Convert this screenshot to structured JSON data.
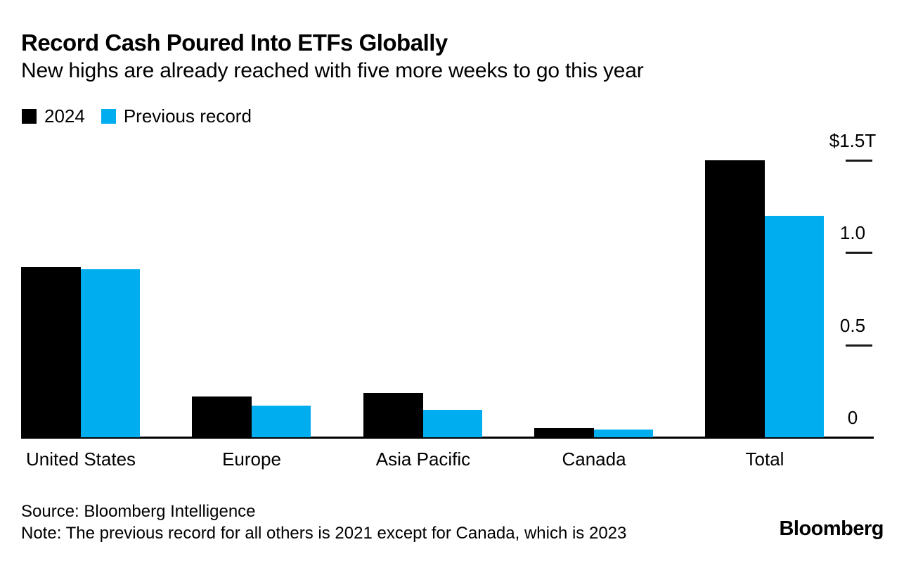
{
  "header": {
    "title": "Record Cash Poured Into ETFs Globally",
    "subtitle": "New highs are already reached with five more weeks to go this year"
  },
  "legend": {
    "items": [
      {
        "label": "2024",
        "color": "#000000"
      },
      {
        "label": "Previous record",
        "color": "#00aeef"
      }
    ]
  },
  "chart_data": {
    "type": "bar",
    "title": "Record Cash Poured Into ETFs Globally",
    "subtitle": "New highs are already reached with five more weeks to go this year",
    "unit": "trillions of US dollars",
    "categories": [
      "United States",
      "Europe",
      "Asia Pacific",
      "Canada",
      "Total"
    ],
    "series": [
      {
        "name": "2024",
        "color": "#000000",
        "values": [
          0.92,
          0.22,
          0.24,
          0.05,
          1.5
        ]
      },
      {
        "name": "Previous record",
        "color": "#00aeef",
        "values": [
          0.91,
          0.17,
          0.15,
          0.04,
          1.2
        ]
      }
    ],
    "y_axis": {
      "side": "right",
      "range": [
        0,
        1.5
      ],
      "ticks": [
        {
          "label": "$1.5T",
          "value": 1.5,
          "dash": true
        },
        {
          "label": "1.0",
          "value": 1.0,
          "dash": true
        },
        {
          "label": "0.5",
          "value": 0.5,
          "dash": true
        },
        {
          "label": "0",
          "value": 0.0,
          "dash": false
        }
      ]
    },
    "grid": false,
    "legend_position": "top-left"
  },
  "footer": {
    "source": "Source: Bloomberg Intelligence",
    "note": "Note: The previous record for all others is 2021 except for Canada, which is 2023",
    "logo": "Bloomberg"
  }
}
